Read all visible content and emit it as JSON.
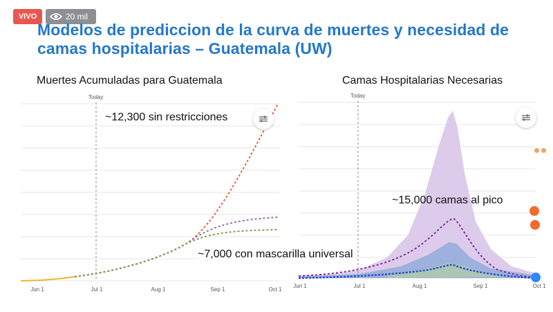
{
  "overlay": {
    "live_label": "VIVO",
    "viewers_count": "20 mil",
    "viewers_icon": "eye-icon"
  },
  "slide": {
    "title": "Modelos de prediccion de la curva de muertes y necesidad de camas hospitalarias – Guatemala (UW)"
  },
  "colors": {
    "title": "#2478c9",
    "live": "#e8574f",
    "no_restrictions": "#e0623f",
    "mask": "#9a6fb0",
    "mandates": "#7ea14f",
    "projection_purple": "#7b2d9a",
    "projection_blue": "#2750c9",
    "observed": "#f0b429"
  },
  "chart_data": [
    {
      "type": "line",
      "title": "Muertes Acumuladas para Guatemala",
      "x_ticks": [
        "Jun 1",
        "Jul 1",
        "Aug 1",
        "Sep 1",
        "Oct 1"
      ],
      "today_label": "Today",
      "annotations": [
        "~12,300 sin restricciones",
        "~7,000 con mascarilla universal"
      ],
      "series": [
        {
          "x": [
            "May 15",
            "Jun 1",
            "Jun 15",
            "Jun 25"
          ],
          "values": [
            50,
            80,
            160,
            250
          ]
        },
        {
          "x": [
            "Jun 25",
            "Jul 1",
            "Jul 15",
            "Aug 1",
            "Aug 15",
            "Sep 1",
            "Sep 15",
            "Oct 1"
          ],
          "values": [
            250,
            350,
            650,
            1300,
            2500,
            4600,
            8000,
            12300
          ]
        },
        {
          "x": [
            "Jun 25",
            "Jul 1",
            "Jul 15",
            "Aug 1",
            "Aug 15",
            "Sep 1",
            "Sep 15",
            "Oct 1"
          ],
          "values": [
            250,
            350,
            650,
            1300,
            2500,
            4600,
            6200,
            7400
          ]
        },
        {
          "x": [
            "Jun 25",
            "Jul 1",
            "Jul 15",
            "Aug 1",
            "Aug 15",
            "Sep 1",
            "Sep 15",
            "Oct 1"
          ],
          "values": [
            250,
            350,
            650,
            1300,
            2500,
            4400,
            6000,
            7000
          ]
        }
      ]
    },
    {
      "type": "area",
      "title": "Camas Hospitalarias Necesarias",
      "x_ticks": [
        "Jun 1",
        "Jul 1",
        "Aug 1",
        "Sep 1",
        "Oct 1"
      ],
      "today_label": "Today",
      "annotations": [
        "~15,000 camas al pico"
      ],
      "series": [
        {
          "x": [
            "Jun 1",
            "Jul 1",
            "Aug 1",
            "Aug 25",
            "Sep 15",
            "Oct 1"
          ],
          "values": [
            300,
            1500,
            6000,
            15000,
            5000,
            1000
          ]
        },
        {
          "x": [
            "Jun 1",
            "Jul 1",
            "Aug 1",
            "Aug 25",
            "Sep 15",
            "Oct 1"
          ],
          "values": [
            300,
            900,
            2500,
            5000,
            2500,
            600
          ]
        }
      ]
    }
  ]
}
